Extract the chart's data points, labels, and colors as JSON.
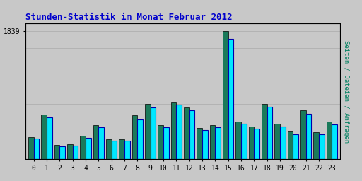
{
  "title": "Stunden-Statistik im Monat Februar 2012",
  "title_color": "#0000cc",
  "ylabel_right": "Seiten / Dateien / Anfragen",
  "ylabel_right_color": "#008060",
  "background_color": "#c8c8c8",
  "hours": [
    0,
    1,
    2,
    3,
    4,
    5,
    6,
    7,
    8,
    9,
    10,
    11,
    12,
    13,
    14,
    15,
    16,
    17,
    18,
    19,
    20,
    21,
    22,
    23
  ],
  "seiten": [
    320,
    640,
    205,
    215,
    335,
    490,
    285,
    285,
    635,
    800,
    490,
    830,
    745,
    450,
    490,
    1839,
    545,
    465,
    800,
    510,
    410,
    700,
    385,
    545
  ],
  "dateien": [
    295,
    600,
    185,
    195,
    305,
    460,
    265,
    265,
    570,
    740,
    455,
    785,
    700,
    415,
    455,
    1730,
    510,
    435,
    755,
    475,
    360,
    655,
    355,
    500
  ],
  "color_seiten": "#1a7a5a",
  "color_dateien": "#00e8ff",
  "color_dateien_edge": "#0000aa",
  "ylim_max": 1950,
  "ytick_val": 1839,
  "bar_width": 0.42,
  "grid_color": "#aaaaaa",
  "grid_levels": [
    400,
    800,
    1200,
    1600,
    1839
  ]
}
